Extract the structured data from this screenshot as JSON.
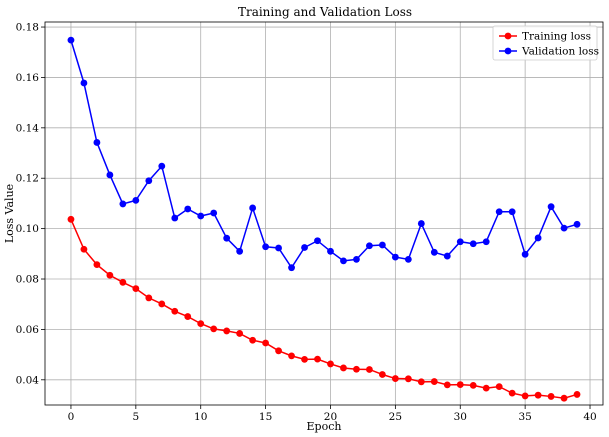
{
  "chart_data": {
    "type": "line",
    "title": "Training and Validation Loss",
    "xlabel": "Epoch",
    "ylabel": "Loss Value",
    "xlim": [
      -2,
      41
    ],
    "ylim": [
      0.03,
      0.182
    ],
    "xticks": [
      0,
      5,
      10,
      15,
      20,
      25,
      30,
      35,
      40
    ],
    "yticks": [
      0.04,
      0.06,
      0.08,
      0.1,
      0.12,
      0.14,
      0.16,
      0.18
    ],
    "xtick_labels": [
      "0",
      "5",
      "10",
      "15",
      "20",
      "25",
      "30",
      "35",
      "40"
    ],
    "ytick_labels": [
      "0.04",
      "0.06",
      "0.08",
      "0.10",
      "0.12",
      "0.14",
      "0.16",
      "0.18"
    ],
    "grid": true,
    "legend_position": "top-right",
    "x": [
      0,
      1,
      2,
      3,
      4,
      5,
      6,
      7,
      8,
      9,
      10,
      11,
      12,
      13,
      14,
      15,
      16,
      17,
      18,
      19,
      20,
      21,
      22,
      23,
      24,
      25,
      26,
      27,
      28,
      29,
      30,
      31,
      32,
      33,
      34,
      35,
      36,
      37,
      38,
      39
    ],
    "series": [
      {
        "name": "Training loss",
        "color": "#ff0000",
        "marker": "circle",
        "values": [
          0.1037,
          0.0918,
          0.0857,
          0.0815,
          0.0787,
          0.0762,
          0.0725,
          0.0701,
          0.0672,
          0.0651,
          0.0623,
          0.0602,
          0.0594,
          0.0584,
          0.0557,
          0.0546,
          0.0515,
          0.0495,
          0.0481,
          0.0482,
          0.0463,
          0.0447,
          0.0442,
          0.0441,
          0.0421,
          0.0405,
          0.0404,
          0.0392,
          0.0393,
          0.038,
          0.0381,
          0.0378,
          0.0367,
          0.0373,
          0.0347,
          0.0336,
          0.0339,
          0.0334,
          0.0327,
          0.0342
        ]
      },
      {
        "name": "Validation loss",
        "color": "#0000ff",
        "marker": "circle",
        "values": [
          0.1748,
          0.1578,
          0.1342,
          0.1213,
          0.1098,
          0.1112,
          0.119,
          0.1248,
          0.1042,
          0.1078,
          0.105,
          0.1062,
          0.0962,
          0.091,
          0.1082,
          0.0928,
          0.0923,
          0.0845,
          0.0925,
          0.0952,
          0.091,
          0.0872,
          0.0878,
          0.0932,
          0.0935,
          0.0887,
          0.0878,
          0.102,
          0.0906,
          0.0891,
          0.0948,
          0.094,
          0.0948,
          0.1067,
          0.1067,
          0.0898,
          0.0963,
          0.1087,
          0.1002,
          0.1017
        ]
      }
    ]
  }
}
